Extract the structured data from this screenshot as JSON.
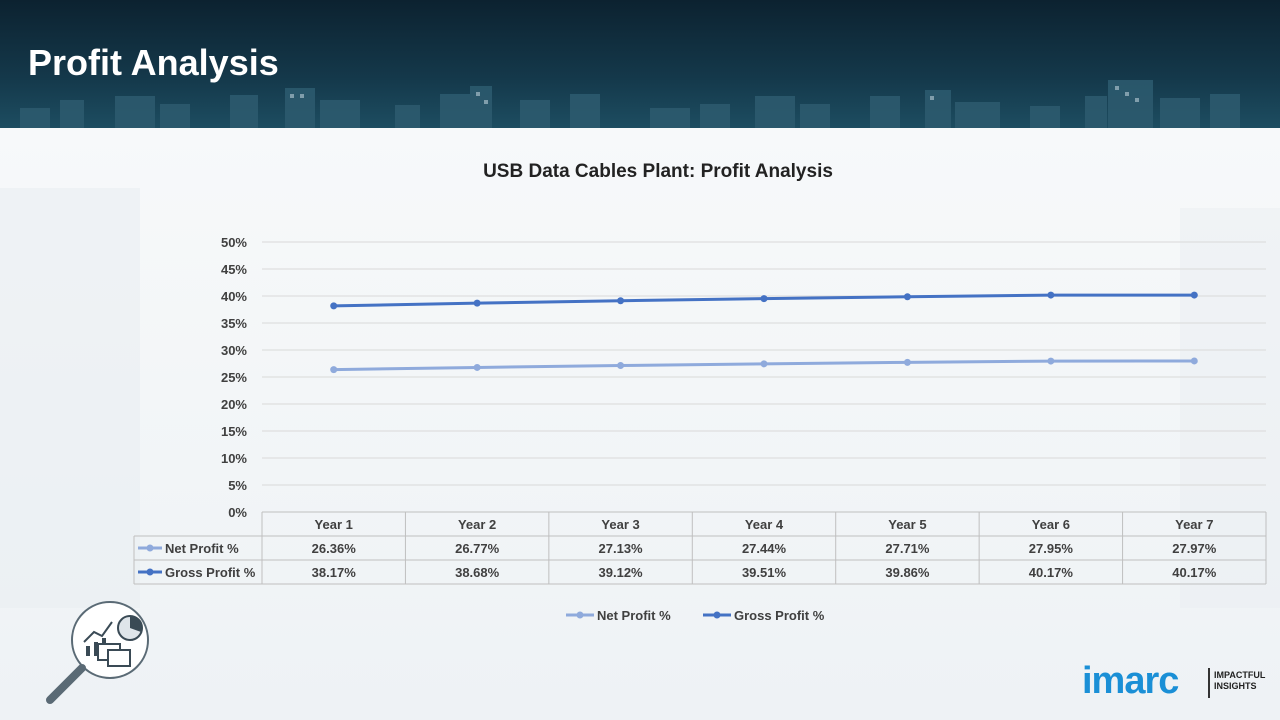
{
  "page": {
    "title": "Profit Analysis"
  },
  "chart_data": {
    "type": "line",
    "title": "USB Data Cables Plant: Profit Analysis",
    "categories": [
      "Year 1",
      "Year 2",
      "Year 3",
      "Year 4",
      "Year 5",
      "Year 6",
      "Year 7"
    ],
    "series": [
      {
        "name": "Net Profit %",
        "color": "#8faadc",
        "values": [
          26.36,
          26.77,
          27.13,
          27.44,
          27.71,
          27.95,
          27.97
        ],
        "labels": [
          "26.36%",
          "26.77%",
          "27.13%",
          "27.44%",
          "27.71%",
          "27.95%",
          "27.97%"
        ]
      },
      {
        "name": "Gross Profit %",
        "color": "#4472c4",
        "values": [
          38.17,
          38.68,
          39.12,
          39.51,
          39.86,
          40.17,
          40.17
        ],
        "labels": [
          "38.17%",
          "38.68%",
          "39.12%",
          "39.51%",
          "39.86%",
          "40.17%",
          "40.17%"
        ]
      }
    ],
    "ylim": [
      0,
      50
    ],
    "yticks": [
      "0%",
      "5%",
      "10%",
      "15%",
      "20%",
      "25%",
      "30%",
      "35%",
      "40%",
      "45%",
      "50%"
    ],
    "grid": true,
    "data_table": true,
    "legend": "bottom"
  },
  "logo": {
    "name": "imarc",
    "tagline_1": "IMPACTFUL",
    "tagline_2": "INSIGHTS"
  },
  "icons": {
    "analysis": "magnifier-chart-icon"
  }
}
